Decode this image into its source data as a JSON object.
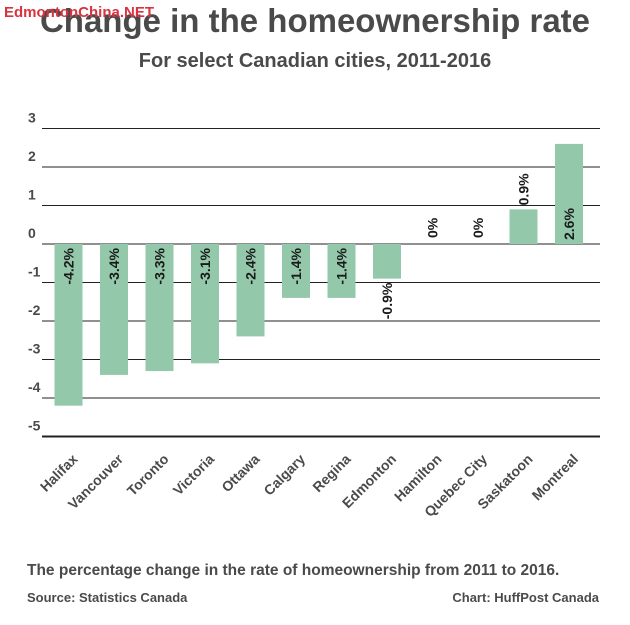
{
  "watermark": "EdmontonChina.NET",
  "caption": "The percentage change in the rate of homeownership from 2011 to 2016.",
  "source": "Source: Statistics Canada",
  "credit": "Chart: HuffPost Canada",
  "colors": {
    "bar": "#93c9aa",
    "grid": "#222222",
    "text": "#4a4a4a"
  },
  "chart_data": {
    "type": "bar",
    "title": "Change in the homeownership rate",
    "subtitle": "For select Canadian cities, 2011-2016",
    "xlabel": "",
    "ylabel": "",
    "categories": [
      "Halifax",
      "Vancouver",
      "Toronto",
      "Victoria",
      "Ottawa",
      "Calgary",
      "Regina",
      "Edmonton",
      "Hamilton",
      "Quebec City",
      "Saskatoon",
      "Montreal"
    ],
    "values": [
      -4.2,
      -3.4,
      -3.3,
      -3.1,
      -2.4,
      -1.4,
      -1.4,
      -0.9,
      0,
      0,
      0.9,
      2.6
    ],
    "data_labels": [
      "-4.2%",
      "-3.4%",
      "-3.3%",
      "-3.1%",
      "-2.4%",
      "-1.4%",
      "-1.4%",
      "-0.9%",
      "0%",
      "0%",
      "0.9%",
      "2.6%"
    ],
    "yticks": [
      3,
      2,
      1,
      0,
      -1,
      -2,
      -3,
      -4,
      -5
    ],
    "ylim": [
      -5,
      3
    ],
    "grid": true
  }
}
